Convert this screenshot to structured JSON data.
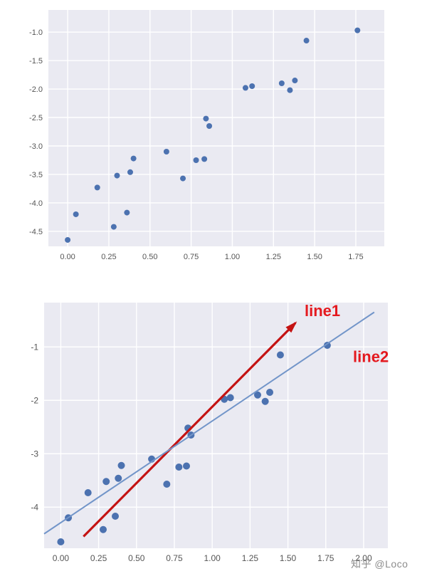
{
  "watermark": "知乎 @Loco",
  "colors": {
    "plot_bg": "#eaeaf2",
    "grid": "#ffffff",
    "dot": "#4c72b0",
    "tick": "#555555",
    "line1": "#c41313",
    "line2": "#7295c9",
    "annotation": "#e4191f"
  },
  "chart_data": [
    {
      "type": "scatter",
      "title": "",
      "xlabel": "",
      "ylabel": "",
      "x": [
        0.0,
        0.05,
        0.18,
        0.28,
        0.3,
        0.36,
        0.38,
        0.4,
        0.6,
        0.7,
        0.78,
        0.83,
        0.84,
        0.86,
        1.08,
        1.12,
        1.3,
        1.35,
        1.38,
        1.45,
        1.76
      ],
      "y": [
        -4.65,
        -4.2,
        -3.73,
        -4.42,
        -3.52,
        -4.17,
        -3.46,
        -3.22,
        -3.1,
        -3.57,
        -3.25,
        -3.23,
        -2.52,
        -2.65,
        -1.98,
        -1.95,
        -1.9,
        -2.02,
        -1.85,
        -1.15,
        -0.97
      ],
      "xticks": {
        "values": [
          0,
          0.25,
          0.5,
          0.75,
          1,
          1.25,
          1.5,
          1.75
        ],
        "labels": [
          "0.00",
          "0.25",
          "0.50",
          "0.75",
          "1.00",
          "1.25",
          "1.50",
          "1.75"
        ]
      },
      "yticks": {
        "values": [
          -1,
          -1.5,
          -2,
          -2.5,
          -3,
          -3.5,
          -4,
          -4.5
        ],
        "labels": [
          "-1.0",
          "-1.5",
          "-2.0",
          "-2.5",
          "-3.0",
          "-3.5",
          "-4.0",
          "-4.5"
        ]
      },
      "xlim": [
        -0.117,
        1.923
      ],
      "ylim": [
        -4.763,
        -0.612
      ],
      "grid": true,
      "legend": "none"
    },
    {
      "type": "scatter",
      "title": "",
      "xlabel": "",
      "ylabel": "",
      "x": [
        0.0,
        0.05,
        0.18,
        0.28,
        0.3,
        0.36,
        0.38,
        0.4,
        0.6,
        0.7,
        0.78,
        0.83,
        0.84,
        0.86,
        1.08,
        1.12,
        1.3,
        1.35,
        1.38,
        1.45,
        1.76
      ],
      "y": [
        -4.65,
        -4.2,
        -3.73,
        -4.42,
        -3.52,
        -4.17,
        -3.46,
        -3.22,
        -3.1,
        -3.57,
        -3.25,
        -3.23,
        -2.52,
        -2.65,
        -1.98,
        -1.95,
        -1.9,
        -2.02,
        -1.85,
        -1.15,
        -0.97
      ],
      "xticks": {
        "values": [
          0,
          0.25,
          0.5,
          0.75,
          1,
          1.25,
          1.5,
          1.75,
          2
        ],
        "labels": [
          "0.00",
          "0.25",
          "0.50",
          "0.75",
          "1.00",
          "1.25",
          "1.50",
          "1.75",
          "2.00"
        ]
      },
      "yticks": {
        "values": [
          -1,
          -2,
          -3,
          -4
        ],
        "labels": [
          "-1",
          "-2",
          "-3",
          "-4"
        ]
      },
      "xlim": [
        -0.11,
        2.16
      ],
      "ylim": [
        -4.77,
        -0.17
      ],
      "grid": true,
      "legend": "none",
      "lines": [
        {
          "name": "line1",
          "color_key": "line1",
          "x1": 0.15,
          "y1": -4.55,
          "x2": 1.55,
          "y2": -0.55,
          "width": 3.2,
          "arrow": true
        },
        {
          "name": "line2",
          "color_key": "line2",
          "x1": -0.11,
          "y1": -4.5,
          "x2": 2.07,
          "y2": -0.35,
          "width": 2,
          "arrow": false
        }
      ],
      "annotations": [
        {
          "text": "line1",
          "x": 1.61,
          "y": -0.42,
          "color_key": "annotation"
        },
        {
          "text": "line2",
          "x": 1.93,
          "y": -1.28,
          "color_key": "annotation"
        }
      ]
    }
  ]
}
